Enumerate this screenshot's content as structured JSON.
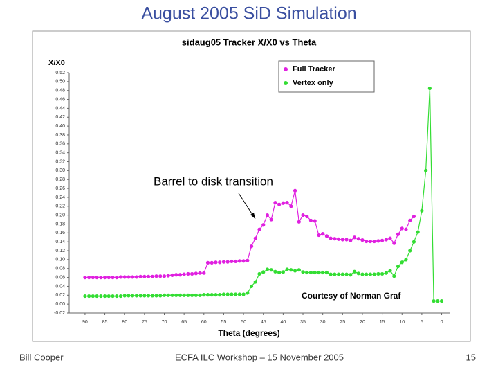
{
  "slide_title": "August 2005 SiD Simulation",
  "footer": {
    "left": "Bill Cooper",
    "center": "ECFA ILC Workshop – 15 November 2005",
    "page": "15"
  },
  "chart_data": {
    "type": "line",
    "title": "sidaug05 Tracker X/X0 vs Theta",
    "x_label": "Theta (degrees)",
    "y_label": "X/X0",
    "annotations": [
      "Barrel to disk transition",
      "Courtesy of Norman Graf"
    ],
    "legend_position": "upper right",
    "grid": false,
    "xlim": [
      94,
      -2
    ],
    "xticks": [
      90,
      85,
      80,
      75,
      70,
      65,
      60,
      55,
      50,
      45,
      40,
      35,
      30,
      25,
      20,
      15,
      10,
      5,
      0
    ],
    "ylim": [
      -0.02,
      0.52
    ],
    "yticks": [
      -0.02,
      {
        "value": 0,
        "label": "0.00"
      },
      0.02,
      0.04,
      0.06,
      0.08,
      {
        "value": 0.1,
        "label": "0.10"
      },
      0.12,
      0.14,
      0.16,
      0.18,
      {
        "value": 0.2,
        "label": "0.20"
      },
      0.22,
      0.24,
      0.26,
      0.28,
      {
        "value": 0.3,
        "label": "0.30"
      },
      0.32,
      0.34,
      0.36,
      0.38,
      {
        "value": 0.4,
        "label": "0.40"
      },
      0.42,
      0.44,
      0.46,
      0.48,
      {
        "value": 0.5,
        "label": "0.50"
      },
      0.52
    ],
    "x": [
      90,
      89,
      88,
      87,
      86,
      85,
      84,
      83,
      82,
      81,
      80,
      79,
      78,
      77,
      76,
      75,
      74,
      73,
      72,
      71,
      70,
      69,
      68,
      67,
      66,
      65,
      64,
      63,
      62,
      61,
      60,
      59,
      58,
      57,
      56,
      55,
      54,
      53,
      52,
      51,
      50,
      49,
      48,
      47,
      46,
      45,
      44,
      43,
      42,
      41,
      40,
      39,
      38,
      37,
      36,
      35,
      34,
      33,
      32,
      31,
      30,
      29,
      28,
      27,
      26,
      25,
      24,
      23,
      22,
      21,
      20,
      19,
      18,
      17,
      16,
      15,
      14,
      13,
      12,
      11,
      10,
      9,
      8,
      7,
      6,
      5,
      4,
      3,
      2,
      1,
      0
    ],
    "series": [
      {
        "name": "Full Tracker",
        "color": "#e020e0",
        "values": [
          0.06,
          0.06,
          0.06,
          0.06,
          0.06,
          0.06,
          0.06,
          0.06,
          0.06,
          0.061,
          0.061,
          0.061,
          0.061,
          0.061,
          0.062,
          0.062,
          0.062,
          0.062,
          0.063,
          0.063,
          0.063,
          0.064,
          0.065,
          0.066,
          0.066,
          0.067,
          0.068,
          0.068,
          0.069,
          0.07,
          0.07,
          0.093,
          0.093,
          0.094,
          0.094,
          0.095,
          0.095,
          0.096,
          0.096,
          0.097,
          0.097,
          0.098,
          0.13,
          0.148,
          0.168,
          0.178,
          0.2,
          0.19,
          0.228,
          0.224,
          0.227,
          0.228,
          0.22,
          0.255,
          0.185,
          0.2,
          0.197,
          0.188,
          0.187,
          0.155,
          0.158,
          0.153,
          0.148,
          0.147,
          0.146,
          0.145,
          0.145,
          0.143,
          0.15,
          0.147,
          0.144,
          0.141,
          0.141,
          0.141,
          0.142,
          0.143,
          0.145,
          0.148,
          0.137,
          0.157,
          0.17,
          0.168,
          0.188,
          0.197,
          null,
          null,
          null,
          null,
          null,
          null,
          null
        ]
      },
      {
        "name": "Vertex only",
        "color": "#33dd33",
        "values": [
          0.018,
          0.018,
          0.018,
          0.018,
          0.018,
          0.018,
          0.018,
          0.018,
          0.018,
          0.018,
          0.019,
          0.019,
          0.019,
          0.019,
          0.019,
          0.019,
          0.019,
          0.019,
          0.019,
          0.019,
          0.02,
          0.02,
          0.02,
          0.02,
          0.02,
          0.02,
          0.02,
          0.02,
          0.02,
          0.02,
          0.021,
          0.021,
          0.021,
          0.021,
          0.021,
          0.022,
          0.022,
          0.022,
          0.022,
          0.022,
          0.022,
          0.025,
          0.04,
          0.05,
          0.068,
          0.072,
          0.078,
          0.077,
          0.073,
          0.071,
          0.072,
          0.078,
          0.077,
          0.075,
          0.077,
          0.072,
          0.071,
          0.071,
          0.071,
          0.071,
          0.071,
          0.071,
          0.067,
          0.067,
          0.067,
          0.067,
          0.067,
          0.066,
          0.073,
          0.069,
          0.067,
          0.067,
          0.067,
          0.067,
          0.068,
          0.068,
          0.07,
          0.075,
          0.063,
          0.085,
          0.094,
          0.1,
          0.12,
          0.14,
          0.162,
          0.21,
          0.3,
          0.485,
          0.007,
          0.007,
          0.007
        ]
      }
    ]
  }
}
